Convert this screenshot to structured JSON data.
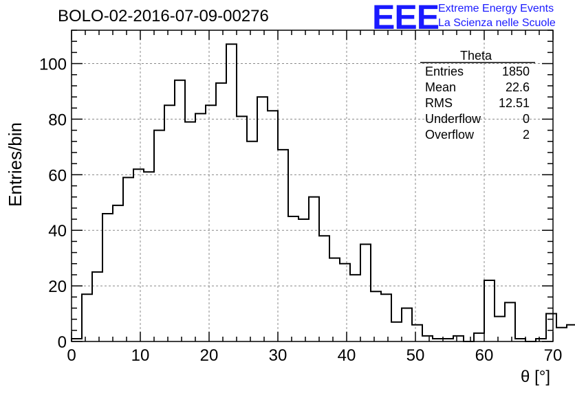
{
  "header": {
    "title": "BOLO-02-2016-07-09-00276",
    "logo_text": "EEE",
    "logo_line1": "Extreme Energy Events",
    "logo_line2": "La Scienza nelle Scuole",
    "logo_color": "#1a1aff"
  },
  "stats_box": {
    "name": "Theta",
    "rows": [
      {
        "label": "Entries",
        "value": "1850"
      },
      {
        "label": "Mean",
        "value": "22.6"
      },
      {
        "label": "RMS",
        "value": "12.51"
      },
      {
        "label": "Underflow",
        "value": "0"
      },
      {
        "label": "Overflow",
        "value": "2"
      }
    ]
  },
  "chart_data": {
    "type": "histogram",
    "xlabel": "θ [°]",
    "ylabel": "Entries/bin",
    "xlim": [
      0,
      70
    ],
    "ylim": [
      0,
      112
    ],
    "bin_width": 1.5,
    "bin_start": 0,
    "values": [
      1,
      17,
      25,
      46,
      49,
      59,
      62,
      61,
      76,
      85,
      94,
      79,
      82,
      85,
      93,
      107,
      81,
      72,
      88,
      83,
      69,
      45,
      44,
      52,
      38,
      30,
      28,
      24,
      35,
      18,
      17,
      7,
      12,
      6,
      2,
      1,
      1,
      2,
      0,
      3,
      22,
      9,
      14,
      1,
      0,
      1,
      10,
      5,
      6
    ],
    "xticks": [
      0,
      10,
      20,
      30,
      40,
      50,
      60,
      70
    ],
    "yticks": [
      0,
      20,
      40,
      60,
      80,
      100
    ],
    "grid": true,
    "line_color": "#000000"
  }
}
